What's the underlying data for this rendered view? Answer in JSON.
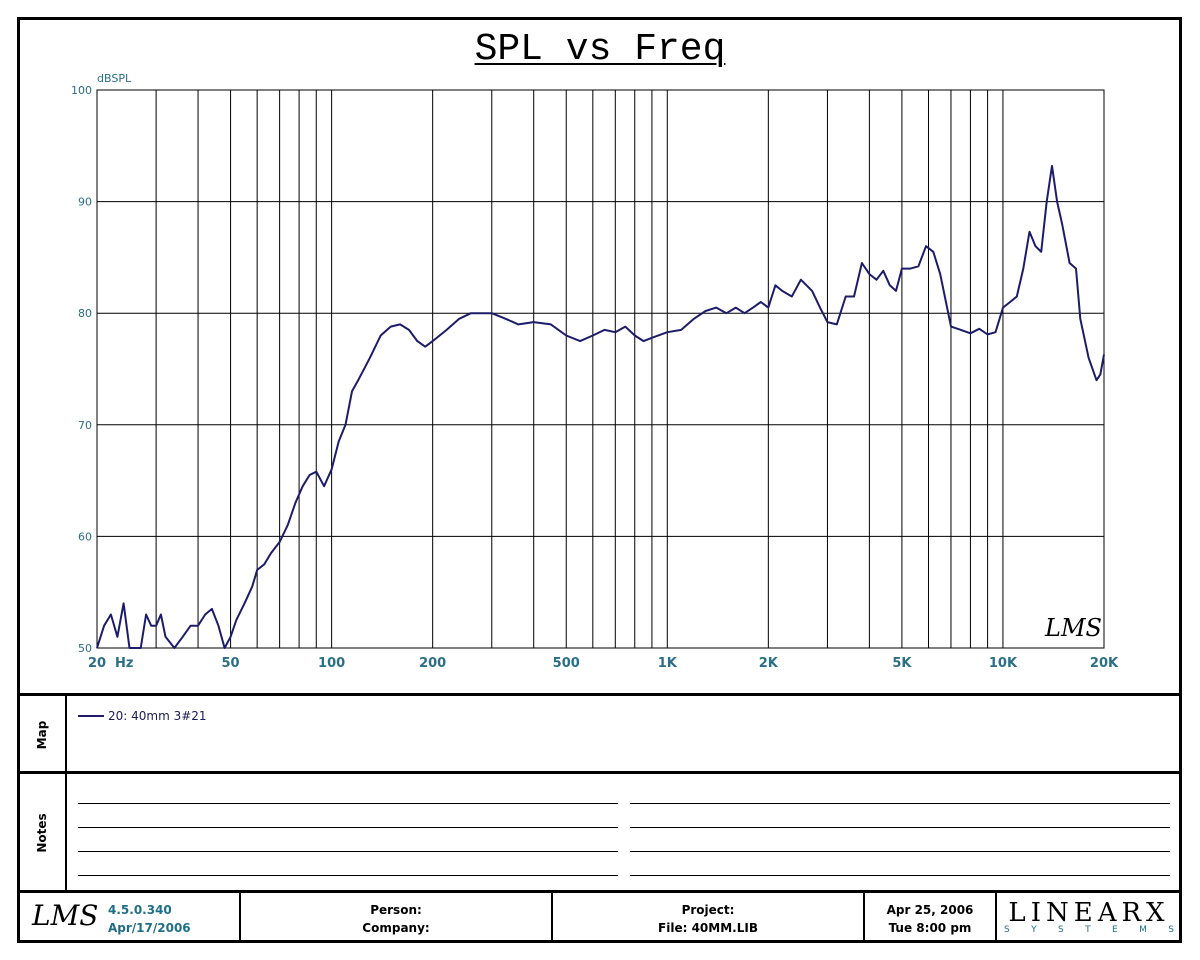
{
  "header": {
    "title": "SPL vs Freq"
  },
  "chart_data": {
    "type": "line",
    "title": "SPL vs Freq",
    "ylabel": "dBSPL",
    "xlabel": "",
    "x_scale": "log",
    "xlim": [
      20,
      20000
    ],
    "ylim": [
      50,
      100
    ],
    "grid": true,
    "y_ticks": [
      50,
      60,
      70,
      80,
      90,
      100
    ],
    "x_ticks": [
      {
        "value": 20,
        "label": "20"
      },
      {
        "value": 50,
        "label": "50"
      },
      {
        "value": 100,
        "label": "100"
      },
      {
        "value": 200,
        "label": "200"
      },
      {
        "value": 500,
        "label": "500"
      },
      {
        "value": 1000,
        "label": "1K"
      },
      {
        "value": 2000,
        "label": "2K"
      },
      {
        "value": 5000,
        "label": "5K"
      },
      {
        "value": 10000,
        "label": "10K"
      },
      {
        "value": 20000,
        "label": "20K"
      }
    ],
    "x_unit_label": "Hz",
    "x_gridlines": [
      20,
      30,
      40,
      50,
      60,
      70,
      80,
      90,
      100,
      200,
      300,
      400,
      500,
      600,
      700,
      800,
      900,
      1000,
      2000,
      3000,
      4000,
      5000,
      6000,
      7000,
      8000,
      9000,
      10000,
      20000
    ],
    "series": [
      {
        "name": "20: 40mm  3#21",
        "color": "#1c1c6a",
        "points": [
          [
            20,
            50
          ],
          [
            21,
            52
          ],
          [
            22,
            53
          ],
          [
            23,
            51
          ],
          [
            24,
            54
          ],
          [
            25,
            50
          ],
          [
            27,
            50
          ],
          [
            28,
            53
          ],
          [
            29,
            52
          ],
          [
            30,
            52
          ],
          [
            31,
            53
          ],
          [
            32,
            51
          ],
          [
            34,
            50
          ],
          [
            36,
            51
          ],
          [
            38,
            52
          ],
          [
            40,
            52
          ],
          [
            42,
            53
          ],
          [
            44,
            53.5
          ],
          [
            46,
            52
          ],
          [
            48,
            50
          ],
          [
            50,
            51
          ],
          [
            52,
            52.5
          ],
          [
            55,
            54
          ],
          [
            58,
            55.5
          ],
          [
            60,
            57
          ],
          [
            63,
            57.5
          ],
          [
            66,
            58.5
          ],
          [
            70,
            59.5
          ],
          [
            74,
            61
          ],
          [
            78,
            63
          ],
          [
            82,
            64.5
          ],
          [
            86,
            65.5
          ],
          [
            90,
            65.8
          ],
          [
            95,
            64.5
          ],
          [
            100,
            66
          ],
          [
            105,
            68.5
          ],
          [
            110,
            70
          ],
          [
            115,
            73
          ],
          [
            120,
            74
          ],
          [
            130,
            76
          ],
          [
            140,
            78
          ],
          [
            150,
            78.8
          ],
          [
            160,
            79
          ],
          [
            170,
            78.5
          ],
          [
            180,
            77.5
          ],
          [
            190,
            77
          ],
          [
            200,
            77.5
          ],
          [
            220,
            78.5
          ],
          [
            240,
            79.5
          ],
          [
            260,
            80
          ],
          [
            280,
            80
          ],
          [
            300,
            80
          ],
          [
            330,
            79.5
          ],
          [
            360,
            79
          ],
          [
            400,
            79.2
          ],
          [
            450,
            79
          ],
          [
            500,
            78
          ],
          [
            550,
            77.5
          ],
          [
            600,
            78
          ],
          [
            650,
            78.5
          ],
          [
            700,
            78.3
          ],
          [
            750,
            78.8
          ],
          [
            800,
            78
          ],
          [
            850,
            77.5
          ],
          [
            900,
            77.8
          ],
          [
            1000,
            78.3
          ],
          [
            1100,
            78.5
          ],
          [
            1200,
            79.5
          ],
          [
            1300,
            80.2
          ],
          [
            1400,
            80.5
          ],
          [
            1500,
            80
          ],
          [
            1600,
            80.5
          ],
          [
            1700,
            80
          ],
          [
            1800,
            80.5
          ],
          [
            1900,
            81
          ],
          [
            2000,
            80.5
          ],
          [
            2100,
            82.5
          ],
          [
            2200,
            82
          ],
          [
            2350,
            81.5
          ],
          [
            2500,
            83
          ],
          [
            2700,
            82
          ],
          [
            2850,
            80.5
          ],
          [
            3000,
            79.2
          ],
          [
            3200,
            79
          ],
          [
            3400,
            81.5
          ],
          [
            3600,
            81.5
          ],
          [
            3800,
            84.5
          ],
          [
            4000,
            83.5
          ],
          [
            4200,
            83
          ],
          [
            4400,
            83.8
          ],
          [
            4600,
            82.5
          ],
          [
            4800,
            82
          ],
          [
            5000,
            84
          ],
          [
            5300,
            84
          ],
          [
            5600,
            84.2
          ],
          [
            5900,
            86
          ],
          [
            6200,
            85.5
          ],
          [
            6500,
            83.5
          ],
          [
            7000,
            78.8
          ],
          [
            7500,
            78.5
          ],
          [
            8000,
            78.2
          ],
          [
            8500,
            78.6
          ],
          [
            9000,
            78.1
          ],
          [
            9500,
            78.3
          ],
          [
            10000,
            80.5
          ],
          [
            10500,
            81
          ],
          [
            11000,
            81.5
          ],
          [
            11500,
            84
          ],
          [
            12000,
            87.3
          ],
          [
            12500,
            86
          ],
          [
            13000,
            85.5
          ],
          [
            13500,
            90
          ],
          [
            14000,
            93.2
          ],
          [
            14500,
            90
          ],
          [
            15000,
            88
          ],
          [
            15800,
            84.5
          ],
          [
            16500,
            84
          ],
          [
            17000,
            79.5
          ],
          [
            18000,
            76
          ],
          [
            19000,
            74
          ],
          [
            19500,
            74.5
          ],
          [
            20000,
            76.3
          ]
        ]
      }
    ]
  },
  "map": {
    "label": "Map",
    "legend_entry": "20: 40mm  3#21"
  },
  "notes": {
    "label": "Notes"
  },
  "footer": {
    "logo_text": "LMS",
    "version": "4.5.0.340",
    "version_date": "Apr/17/2006",
    "person_label": "Person:",
    "company_label": "Company:",
    "project_label": "Project:",
    "file_label": "File: 40MM.LIB",
    "date": "Apr 25, 2006",
    "time": "Tue  8:00 pm",
    "brand": "LINEARX",
    "brand_sub": [
      "S",
      "Y",
      "S",
      "T",
      "E",
      "M",
      "S"
    ]
  },
  "watermark_logo": "LMS"
}
